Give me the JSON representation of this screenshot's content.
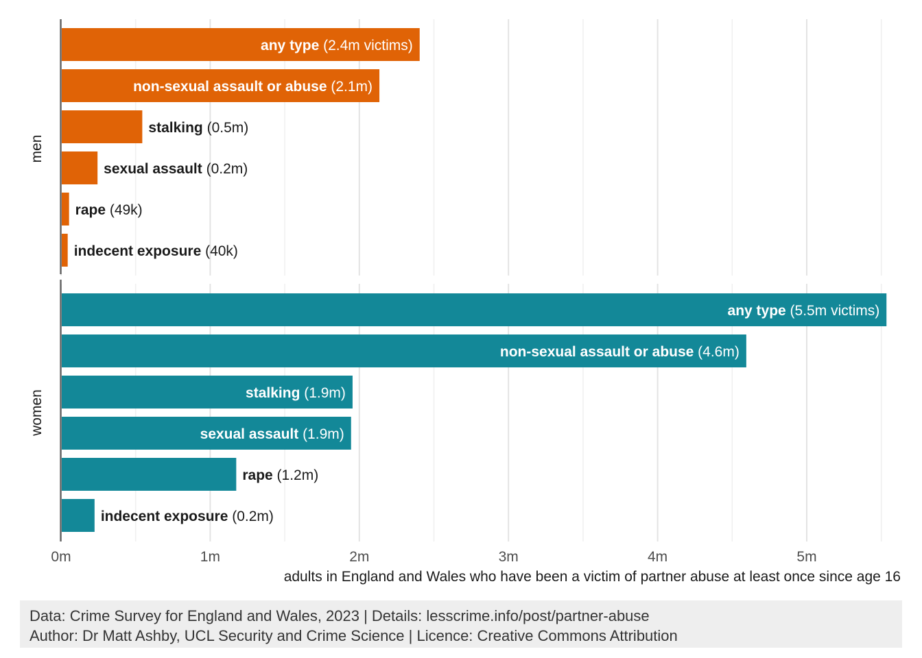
{
  "chart_data": {
    "type": "bar",
    "orientation": "horizontal",
    "xlabel": "adults in England and Wales who have been a victim of partner abuse at least once since age 16",
    "xlim": [
      0,
      5.55
    ],
    "x_ticks": [
      {
        "value": 0,
        "label": "0m"
      },
      {
        "value": 1,
        "label": "1m"
      },
      {
        "value": 2,
        "label": "2m"
      },
      {
        "value": 3,
        "label": "3m"
      },
      {
        "value": 4,
        "label": "4m"
      },
      {
        "value": 5,
        "label": "5m"
      }
    ],
    "grid": true,
    "colors": {
      "men": "#e06306",
      "women": "#138898"
    },
    "panels": [
      {
        "facet": "men",
        "bars": [
          {
            "category": "any type",
            "value": 2.4,
            "value_label": "(2.4m victims)"
          },
          {
            "category": "non-sexual assault or abuse",
            "value": 2.13,
            "value_label": "(2.1m)"
          },
          {
            "category": "stalking",
            "value": 0.54,
            "value_label": "(0.5m)"
          },
          {
            "category": "sexual assault",
            "value": 0.24,
            "value_label": "(0.2m)"
          },
          {
            "category": "rape",
            "value": 0.049,
            "value_label": "(49k)"
          },
          {
            "category": "indecent exposure",
            "value": 0.04,
            "value_label": "(40k)"
          }
        ]
      },
      {
        "facet": "women",
        "bars": [
          {
            "category": "any type",
            "value": 5.53,
            "value_label": "(5.5m victims)"
          },
          {
            "category": "non-sexual assault or abuse",
            "value": 4.59,
            "value_label": "(4.6m)"
          },
          {
            "category": "stalking",
            "value": 1.95,
            "value_label": "(1.9m)"
          },
          {
            "category": "sexual assault",
            "value": 1.94,
            "value_label": "(1.9m)"
          },
          {
            "category": "rape",
            "value": 1.17,
            "value_label": "(1.2m)"
          },
          {
            "category": "indecent exposure",
            "value": 0.22,
            "value_label": "(0.2m)"
          }
        ]
      }
    ]
  },
  "caption": {
    "line1": "Data: Crime Survey for England and Wales, 2023 | Details: lesscrime.info/post/partner-abuse",
    "line2": "Author: Dr Matt Ashby, UCL Security and Crime Science | Licence: Creative Commons Attribution"
  }
}
